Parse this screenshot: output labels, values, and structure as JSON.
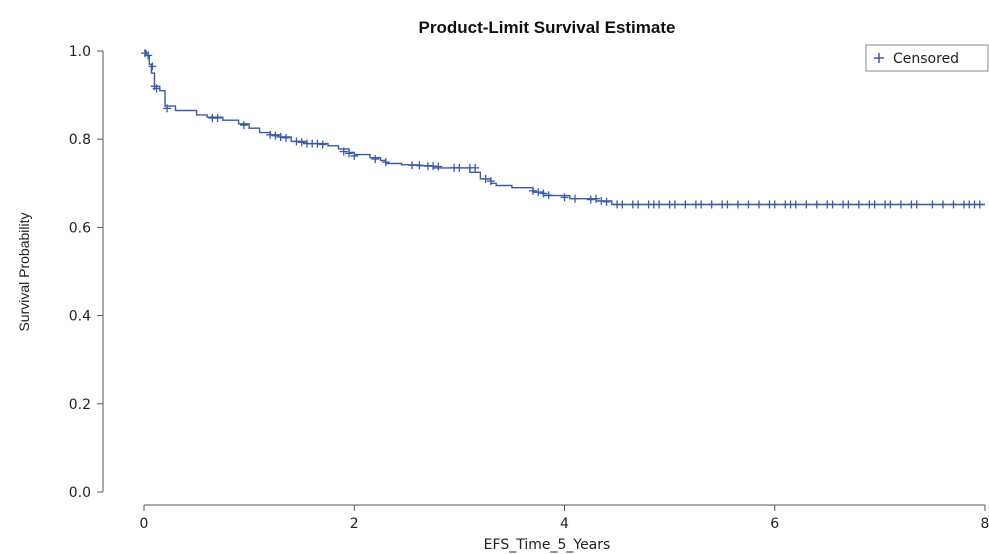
{
  "chart_data": {
    "type": "line",
    "title": "Product-Limit Survival Estimate",
    "xlabel": "EFS_Time_5_Years",
    "ylabel": "Survival Probability",
    "xlim": [
      0,
      8
    ],
    "ylim": [
      0,
      1
    ],
    "xticks": [
      0,
      2,
      4,
      6,
      8
    ],
    "xtick_labels": [
      "0",
      "2",
      "4",
      "6",
      "8"
    ],
    "yticks": [
      0.0,
      0.2,
      0.4,
      0.6,
      0.8,
      1.0
    ],
    "ytick_labels": [
      "0.0",
      "0.2",
      "0.4",
      "0.6",
      "0.8",
      "1.0"
    ],
    "grid": false,
    "legend": {
      "position": "top-right",
      "entries": [
        {
          "symbol": "+",
          "label": "Censored"
        }
      ]
    },
    "colors": {
      "curve": "#3a5aa8",
      "axis": "#555555"
    },
    "series": [
      {
        "type": "step",
        "x": [
          0,
          0.02,
          0.05,
          0.07,
          0.1,
          0.15,
          0.2,
          0.3,
          0.5,
          0.6,
          0.75,
          0.9,
          1.0,
          1.1,
          1.2,
          1.3,
          1.4,
          1.55,
          1.75,
          1.85,
          1.95,
          2.0,
          2.15,
          2.25,
          2.3,
          2.45,
          2.6,
          2.75,
          3.1,
          3.2,
          3.3,
          3.35,
          3.5,
          3.7,
          3.8,
          4.05,
          4.3,
          4.45,
          8.0
        ],
        "y": [
          1.0,
          0.99,
          0.97,
          0.95,
          0.92,
          0.91,
          0.875,
          0.865,
          0.855,
          0.85,
          0.843,
          0.835,
          0.825,
          0.815,
          0.81,
          0.805,
          0.795,
          0.79,
          0.785,
          0.778,
          0.77,
          0.765,
          0.758,
          0.752,
          0.745,
          0.742,
          0.74,
          0.735,
          0.725,
          0.71,
          0.7,
          0.695,
          0.69,
          0.68,
          0.672,
          0.665,
          0.66,
          0.652,
          0.652
        ]
      },
      {
        "name": "Censored",
        "type": "scatter",
        "marker": "+",
        "points": [
          [
            0.01,
            0.995
          ],
          [
            0.04,
            0.99
          ],
          [
            0.08,
            0.965
          ],
          [
            0.1,
            0.92
          ],
          [
            0.12,
            0.915
          ],
          [
            0.22,
            0.87
          ],
          [
            0.65,
            0.848
          ],
          [
            0.7,
            0.848
          ],
          [
            0.95,
            0.832
          ],
          [
            1.2,
            0.81
          ],
          [
            1.25,
            0.808
          ],
          [
            1.3,
            0.805
          ],
          [
            1.35,
            0.803
          ],
          [
            1.45,
            0.795
          ],
          [
            1.5,
            0.793
          ],
          [
            1.55,
            0.79
          ],
          [
            1.6,
            0.79
          ],
          [
            1.65,
            0.79
          ],
          [
            1.7,
            0.788
          ],
          [
            1.9,
            0.772
          ],
          [
            1.95,
            0.768
          ],
          [
            2.0,
            0.762
          ],
          [
            2.2,
            0.755
          ],
          [
            2.3,
            0.748
          ],
          [
            2.55,
            0.741
          ],
          [
            2.62,
            0.741
          ],
          [
            2.7,
            0.739
          ],
          [
            2.75,
            0.739
          ],
          [
            2.8,
            0.738
          ],
          [
            2.95,
            0.735
          ],
          [
            3.0,
            0.735
          ],
          [
            3.1,
            0.735
          ],
          [
            3.15,
            0.735
          ],
          [
            3.25,
            0.71
          ],
          [
            3.3,
            0.705
          ],
          [
            3.7,
            0.683
          ],
          [
            3.75,
            0.68
          ],
          [
            3.8,
            0.677
          ],
          [
            3.85,
            0.673
          ],
          [
            4.0,
            0.668
          ],
          [
            4.1,
            0.665
          ],
          [
            4.25,
            0.663
          ],
          [
            4.3,
            0.665
          ],
          [
            4.35,
            0.66
          ],
          [
            4.4,
            0.658
          ],
          [
            4.5,
            0.652
          ],
          [
            4.55,
            0.652
          ],
          [
            4.65,
            0.652
          ],
          [
            4.7,
            0.652
          ],
          [
            4.8,
            0.652
          ],
          [
            4.85,
            0.652
          ],
          [
            4.9,
            0.652
          ],
          [
            5.0,
            0.652
          ],
          [
            5.05,
            0.652
          ],
          [
            5.15,
            0.652
          ],
          [
            5.25,
            0.652
          ],
          [
            5.3,
            0.652
          ],
          [
            5.4,
            0.652
          ],
          [
            5.5,
            0.652
          ],
          [
            5.55,
            0.652
          ],
          [
            5.65,
            0.652
          ],
          [
            5.75,
            0.652
          ],
          [
            5.85,
            0.652
          ],
          [
            5.95,
            0.652
          ],
          [
            6.0,
            0.652
          ],
          [
            6.1,
            0.652
          ],
          [
            6.15,
            0.652
          ],
          [
            6.2,
            0.652
          ],
          [
            6.3,
            0.652
          ],
          [
            6.4,
            0.652
          ],
          [
            6.5,
            0.652
          ],
          [
            6.55,
            0.652
          ],
          [
            6.65,
            0.652
          ],
          [
            6.7,
            0.652
          ],
          [
            6.8,
            0.652
          ],
          [
            6.9,
            0.652
          ],
          [
            6.95,
            0.652
          ],
          [
            7.05,
            0.652
          ],
          [
            7.1,
            0.652
          ],
          [
            7.2,
            0.652
          ],
          [
            7.3,
            0.652
          ],
          [
            7.35,
            0.652
          ],
          [
            7.5,
            0.652
          ],
          [
            7.6,
            0.652
          ],
          [
            7.7,
            0.652
          ],
          [
            7.8,
            0.652
          ],
          [
            7.85,
            0.652
          ],
          [
            7.9,
            0.652
          ],
          [
            7.95,
            0.652
          ]
        ]
      }
    ]
  }
}
